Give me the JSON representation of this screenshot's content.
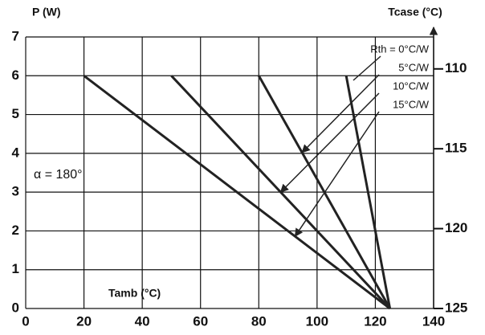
{
  "chart_data": {
    "type": "line",
    "y_label": "P (W)",
    "y2_label": "Tcase (°C)",
    "x_label": "Tamb (°C)",
    "annotation": "α = 180°",
    "xlim": [
      0,
      140
    ],
    "xticks": [
      0,
      20,
      40,
      60,
      80,
      100,
      120,
      140
    ],
    "ylim": [
      0,
      7
    ],
    "yticks": [
      0,
      1,
      2,
      3,
      4,
      5,
      6,
      7
    ],
    "y2lim": [
      125,
      108
    ],
    "y2ticks": [
      110,
      115,
      120,
      125
    ],
    "grid": true,
    "series": [
      {
        "name": "Rth = 0°C/W",
        "color": "#222222",
        "x": [
          110,
          125
        ],
        "values": [
          6,
          0
        ]
      },
      {
        "name": "5°C/W",
        "color": "#222222",
        "x": [
          80,
          125
        ],
        "values": [
          6,
          0
        ]
      },
      {
        "name": "10°C/W",
        "color": "#222222",
        "x": [
          50,
          125
        ],
        "values": [
          6,
          0
        ]
      },
      {
        "name": "15°C/W",
        "color": "#222222",
        "x": [
          20,
          125
        ],
        "values": [
          6,
          0
        ]
      }
    ]
  }
}
